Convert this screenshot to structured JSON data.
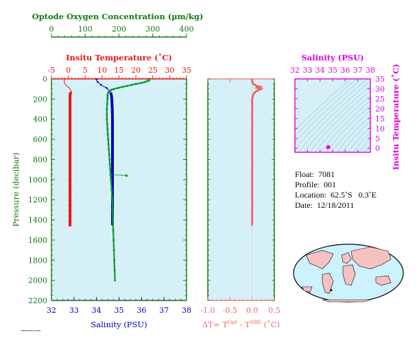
{
  "colors": {
    "oxygen": "#119933",
    "temperature": "#ee1111",
    "salinity": "#0000bb",
    "delta_t": "#ee6666",
    "ts_axis": "#dd00dd",
    "panel_fill": "#d6f0f8",
    "axis_green": "#117711"
  },
  "main_panel": {
    "oxygen_title": "Optode Oxygen Concentration (μm/kg)",
    "temp_title": "Insitu Temperature (˚C)",
    "salinity_title": "Salinity (PSU)",
    "pressure_title": "Pressure (decibar)"
  },
  "delta_panel": {
    "title": "ΔT= T",
    "sup1": "Opt",
    "mid": " - T",
    "sup2": "SBE",
    "end": " (˚C)"
  },
  "ts_panel": {
    "salinity_title": "Salinity (PSU)",
    "temp_title": "Insitu Temperature (˚C)"
  },
  "info": {
    "float": "Float:  7081",
    "profile": "Profile:  001",
    "location": "Location:  62.5˚S   0.3˚E",
    "date": "Date:  12/18/2011"
  },
  "stamp": "FSE20160826.0000",
  "chart_data": [
    {
      "type": "line",
      "name": "profiles",
      "ylim": [
        2200,
        0
      ],
      "yticks": [
        0,
        200,
        400,
        600,
        800,
        1000,
        1200,
        1400,
        1600,
        1800,
        2000,
        2200
      ],
      "axes": {
        "oxygen": {
          "lim": [
            0,
            400
          ],
          "ticks": [
            0,
            100,
            200,
            300,
            400
          ]
        },
        "temperature": {
          "lim": [
            -5,
            35
          ],
          "ticks": [
            -5,
            0,
            5,
            10,
            15,
            20,
            25,
            30,
            35
          ]
        },
        "salinity": {
          "lim": [
            32,
            38
          ],
          "ticks": [
            32,
            33,
            34,
            35,
            36,
            37,
            38
          ]
        }
      },
      "series": [
        {
          "key": "oxygen",
          "pressure": [
            5,
            10,
            15,
            20,
            30,
            40,
            50,
            60,
            70,
            80,
            90,
            100,
            110,
            120,
            130,
            140,
            160,
            180,
            200,
            250,
            300,
            350,
            400,
            450,
            500,
            550,
            600,
            650,
            700,
            750,
            800,
            850,
            900,
            950,
            1000,
            1100,
            1200,
            1300,
            1400,
            1500,
            1600,
            1700,
            1800,
            1900,
            2000
          ],
          "values": [
            290,
            290,
            288,
            285,
            278,
            266,
            250,
            237,
            224,
            210,
            197,
            185,
            177,
            171,
            169,
            168,
            166,
            166,
            166,
            165,
            164,
            164,
            164,
            165,
            166,
            167,
            168,
            169,
            170,
            171,
            172,
            173,
            174,
            175,
            176,
            178,
            180,
            181,
            182,
            183,
            184,
            185,
            186,
            187,
            188
          ]
        },
        {
          "key": "oxygen_thin",
          "pressure": [
            950,
            952,
            955,
            960
          ],
          "values": [
            170,
            185,
            205,
            222
          ]
        },
        {
          "key": "temperature",
          "pressure": [
            5,
            30,
            60,
            90,
            120,
            135,
            145,
            160,
            180,
            200,
            250,
            300,
            400,
            500,
            600,
            700,
            800,
            900,
            1000,
            1100,
            1200,
            1300,
            1400,
            1450
          ],
          "values": [
            -1.2,
            -1.2,
            -0.8,
            0.3,
            0.8,
            0.9,
            0.6,
            0.5,
            0.5,
            0.5,
            0.5,
            0.5,
            0.5,
            0.5,
            0.5,
            0.5,
            0.5,
            0.5,
            0.5,
            0.5,
            0.5,
            0.5,
            0.5,
            0.5
          ]
        },
        {
          "key": "salinity",
          "pressure": [
            5,
            30,
            60,
            90,
            120,
            140,
            160,
            180,
            200,
            300,
            400,
            500,
            600,
            700,
            800,
            900,
            1000,
            1100,
            1200,
            1300,
            1400,
            1450
          ],
          "values": [
            34.0,
            34.05,
            34.2,
            34.45,
            34.6,
            34.64,
            34.66,
            34.67,
            34.68,
            34.7,
            34.71,
            34.71,
            34.71,
            34.71,
            34.71,
            34.71,
            34.71,
            34.71,
            34.71,
            34.71,
            34.71,
            34.71
          ]
        }
      ]
    },
    {
      "type": "scatter",
      "name": "delta_t",
      "xlim": [
        -1.0,
        0.5
      ],
      "xticks": [
        -1.0,
        -0.5,
        0.0,
        0.5
      ],
      "ylim": [
        2200,
        0
      ],
      "pressure": [
        5,
        15,
        30,
        50,
        70,
        80,
        90,
        100,
        110,
        120,
        130,
        140,
        160,
        200,
        300,
        400,
        500,
        600,
        700,
        800,
        900,
        1000,
        1100,
        1200,
        1300,
        1400,
        1450
      ],
      "values": [
        0.0,
        0.0,
        0.0,
        0.02,
        0.1,
        0.18,
        0.12,
        0.2,
        0.15,
        0.1,
        0.07,
        0.05,
        0.02,
        0.0,
        0.0,
        0.0,
        0.0,
        0.0,
        0.0,
        0.0,
        0.0,
        0.0,
        0.0,
        0.0,
        0.0,
        0.0,
        0.0
      ]
    },
    {
      "type": "scatter",
      "name": "t_s_diagram",
      "xlim": [
        32,
        38
      ],
      "xticks": [
        32,
        33,
        34,
        35,
        36,
        37,
        38
      ],
      "ylim": [
        -2,
        35
      ],
      "yticks": [
        0,
        5,
        10,
        15,
        20,
        25,
        30,
        35
      ],
      "points": [
        {
          "s": 34.7,
          "t": 0.5
        },
        {
          "s": 34.68,
          "t": 0.6
        },
        {
          "s": 34.65,
          "t": 0.9
        },
        {
          "s": 34.6,
          "t": 0.4
        }
      ]
    }
  ]
}
